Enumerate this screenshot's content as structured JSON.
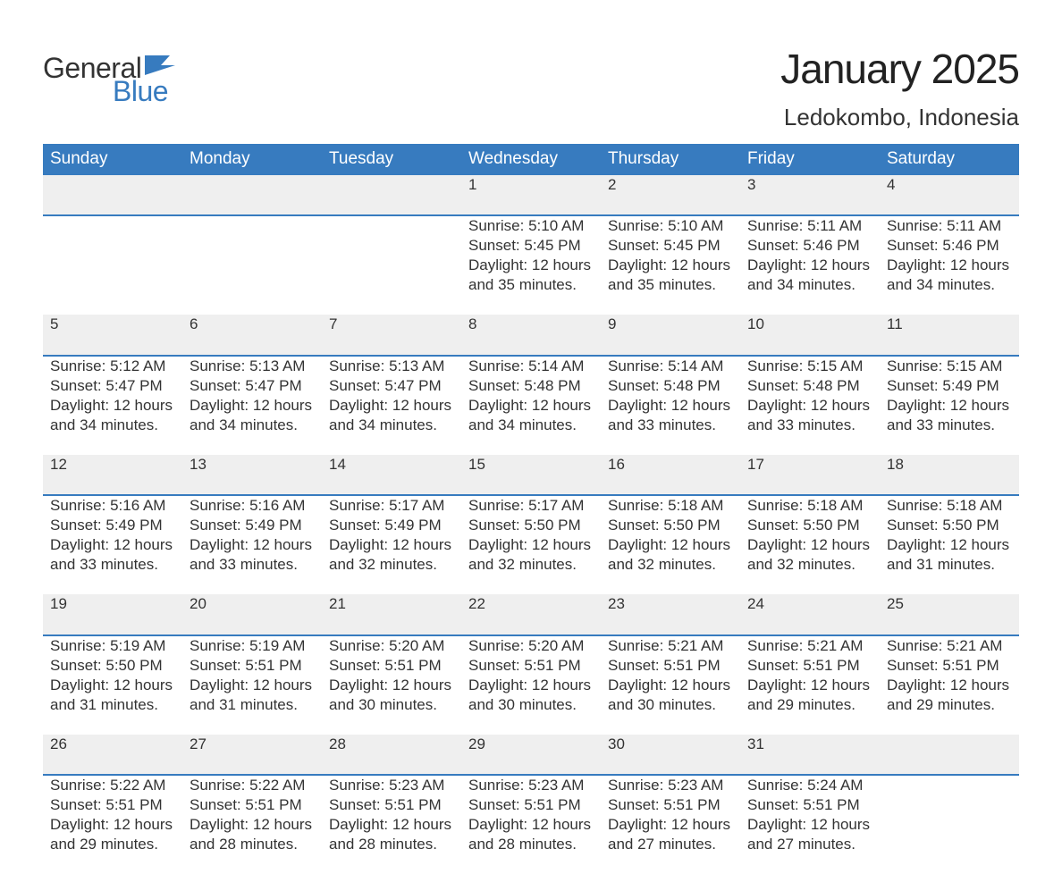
{
  "logo": {
    "general": "General",
    "blue": "Blue",
    "accent": "#377bbf"
  },
  "header": {
    "title": "January 2025",
    "location": "Ledokombo, Indonesia"
  },
  "weekdays": [
    "Sunday",
    "Monday",
    "Tuesday",
    "Wednesday",
    "Thursday",
    "Friday",
    "Saturday"
  ],
  "colors": {
    "header_bg": "#377bbf",
    "header_text": "#ffffff",
    "daynum_bg": "#efefef",
    "daynum_text": "#555555",
    "body_text": "#333333",
    "rule": "#377bbf"
  },
  "font": {
    "family": "Arial",
    "title_size": 46,
    "location_size": 26,
    "weekday_size": 19,
    "daynum_size": 20,
    "cell_size": 17
  },
  "labels": {
    "sunrise": "Sunrise: ",
    "sunset": "Sunset: ",
    "daylight_prefix": "Daylight: ",
    "daylight_join": " and ",
    "daylight_suffix": "."
  },
  "weeks": [
    [
      null,
      null,
      null,
      {
        "n": "1",
        "sunrise": "5:10 AM",
        "sunset": "5:45 PM",
        "dl_h": "12 hours",
        "dl_m": "35 minutes"
      },
      {
        "n": "2",
        "sunrise": "5:10 AM",
        "sunset": "5:45 PM",
        "dl_h": "12 hours",
        "dl_m": "35 minutes"
      },
      {
        "n": "3",
        "sunrise": "5:11 AM",
        "sunset": "5:46 PM",
        "dl_h": "12 hours",
        "dl_m": "34 minutes"
      },
      {
        "n": "4",
        "sunrise": "5:11 AM",
        "sunset": "5:46 PM",
        "dl_h": "12 hours",
        "dl_m": "34 minutes"
      }
    ],
    [
      {
        "n": "5",
        "sunrise": "5:12 AM",
        "sunset": "5:47 PM",
        "dl_h": "12 hours",
        "dl_m": "34 minutes"
      },
      {
        "n": "6",
        "sunrise": "5:13 AM",
        "sunset": "5:47 PM",
        "dl_h": "12 hours",
        "dl_m": "34 minutes"
      },
      {
        "n": "7",
        "sunrise": "5:13 AM",
        "sunset": "5:47 PM",
        "dl_h": "12 hours",
        "dl_m": "34 minutes"
      },
      {
        "n": "8",
        "sunrise": "5:14 AM",
        "sunset": "5:48 PM",
        "dl_h": "12 hours",
        "dl_m": "34 minutes"
      },
      {
        "n": "9",
        "sunrise": "5:14 AM",
        "sunset": "5:48 PM",
        "dl_h": "12 hours",
        "dl_m": "33 minutes"
      },
      {
        "n": "10",
        "sunrise": "5:15 AM",
        "sunset": "5:48 PM",
        "dl_h": "12 hours",
        "dl_m": "33 minutes"
      },
      {
        "n": "11",
        "sunrise": "5:15 AM",
        "sunset": "5:49 PM",
        "dl_h": "12 hours",
        "dl_m": "33 minutes"
      }
    ],
    [
      {
        "n": "12",
        "sunrise": "5:16 AM",
        "sunset": "5:49 PM",
        "dl_h": "12 hours",
        "dl_m": "33 minutes"
      },
      {
        "n": "13",
        "sunrise": "5:16 AM",
        "sunset": "5:49 PM",
        "dl_h": "12 hours",
        "dl_m": "33 minutes"
      },
      {
        "n": "14",
        "sunrise": "5:17 AM",
        "sunset": "5:49 PM",
        "dl_h": "12 hours",
        "dl_m": "32 minutes"
      },
      {
        "n": "15",
        "sunrise": "5:17 AM",
        "sunset": "5:50 PM",
        "dl_h": "12 hours",
        "dl_m": "32 minutes"
      },
      {
        "n": "16",
        "sunrise": "5:18 AM",
        "sunset": "5:50 PM",
        "dl_h": "12 hours",
        "dl_m": "32 minutes"
      },
      {
        "n": "17",
        "sunrise": "5:18 AM",
        "sunset": "5:50 PM",
        "dl_h": "12 hours",
        "dl_m": "32 minutes"
      },
      {
        "n": "18",
        "sunrise": "5:18 AM",
        "sunset": "5:50 PM",
        "dl_h": "12 hours",
        "dl_m": "31 minutes"
      }
    ],
    [
      {
        "n": "19",
        "sunrise": "5:19 AM",
        "sunset": "5:50 PM",
        "dl_h": "12 hours",
        "dl_m": "31 minutes"
      },
      {
        "n": "20",
        "sunrise": "5:19 AM",
        "sunset": "5:51 PM",
        "dl_h": "12 hours",
        "dl_m": "31 minutes"
      },
      {
        "n": "21",
        "sunrise": "5:20 AM",
        "sunset": "5:51 PM",
        "dl_h": "12 hours",
        "dl_m": "30 minutes"
      },
      {
        "n": "22",
        "sunrise": "5:20 AM",
        "sunset": "5:51 PM",
        "dl_h": "12 hours",
        "dl_m": "30 minutes"
      },
      {
        "n": "23",
        "sunrise": "5:21 AM",
        "sunset": "5:51 PM",
        "dl_h": "12 hours",
        "dl_m": "30 minutes"
      },
      {
        "n": "24",
        "sunrise": "5:21 AM",
        "sunset": "5:51 PM",
        "dl_h": "12 hours",
        "dl_m": "29 minutes"
      },
      {
        "n": "25",
        "sunrise": "5:21 AM",
        "sunset": "5:51 PM",
        "dl_h": "12 hours",
        "dl_m": "29 minutes"
      }
    ],
    [
      {
        "n": "26",
        "sunrise": "5:22 AM",
        "sunset": "5:51 PM",
        "dl_h": "12 hours",
        "dl_m": "29 minutes"
      },
      {
        "n": "27",
        "sunrise": "5:22 AM",
        "sunset": "5:51 PM",
        "dl_h": "12 hours",
        "dl_m": "28 minutes"
      },
      {
        "n": "28",
        "sunrise": "5:23 AM",
        "sunset": "5:51 PM",
        "dl_h": "12 hours",
        "dl_m": "28 minutes"
      },
      {
        "n": "29",
        "sunrise": "5:23 AM",
        "sunset": "5:51 PM",
        "dl_h": "12 hours",
        "dl_m": "28 minutes"
      },
      {
        "n": "30",
        "sunrise": "5:23 AM",
        "sunset": "5:51 PM",
        "dl_h": "12 hours",
        "dl_m": "27 minutes"
      },
      {
        "n": "31",
        "sunrise": "5:24 AM",
        "sunset": "5:51 PM",
        "dl_h": "12 hours",
        "dl_m": "27 minutes"
      },
      null
    ]
  ]
}
